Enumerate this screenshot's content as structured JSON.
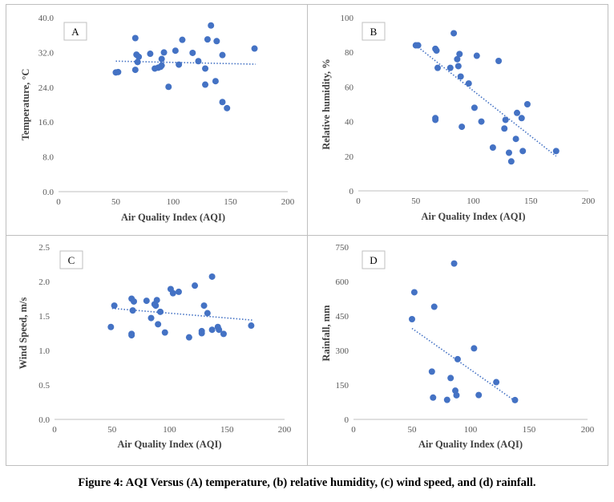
{
  "caption": "Figure 4: AQI Versus (A) temperature, (b) relative humidity, (c) wind speed, and (d) rainfall.",
  "colors": {
    "point": "#4472c4",
    "trend": "#4472c4",
    "axis": "#bfbfbf",
    "tick_text": "#595959",
    "label_text": "#404040"
  },
  "chart_data": [
    {
      "type": "scatter",
      "panel_label": "A",
      "xlabel": "Air Quality Index (AQI)",
      "ylabel": "Temperature, °C",
      "xlim": [
        0,
        200
      ],
      "ylim": [
        0,
        40
      ],
      "xticks": [
        "0",
        "50",
        "100",
        "150",
        "200"
      ],
      "yticks": [
        "0.0",
        "8.0",
        "16.0",
        "24.0",
        "32.0",
        "40.0"
      ],
      "grid": false,
      "trendline": {
        "type": "linear",
        "style": "dotted",
        "x": [
          50,
          172
        ],
        "y": [
          30.0,
          29.3
        ]
      },
      "points": [
        [
          50,
          27.4
        ],
        [
          52,
          27.5
        ],
        [
          67,
          35.3
        ],
        [
          67,
          28.0
        ],
        [
          68,
          31.5
        ],
        [
          69,
          29.8
        ],
        [
          70,
          31.0
        ],
        [
          80,
          31.7
        ],
        [
          84,
          28.3
        ],
        [
          87,
          28.5
        ],
        [
          89,
          28.7
        ],
        [
          90,
          29.0
        ],
        [
          90,
          30.5
        ],
        [
          92,
          32.0
        ],
        [
          96,
          24.1
        ],
        [
          102,
          32.4
        ],
        [
          105,
          29.2
        ],
        [
          108,
          34.9
        ],
        [
          117,
          31.9
        ],
        [
          122,
          30.0
        ],
        [
          128,
          28.3
        ],
        [
          128,
          24.6
        ],
        [
          130,
          35.0
        ],
        [
          133,
          38.2
        ],
        [
          137,
          25.4
        ],
        [
          138,
          34.6
        ],
        [
          143,
          31.4
        ],
        [
          143,
          20.6
        ],
        [
          147,
          19.2
        ],
        [
          171,
          32.9
        ]
      ]
    },
    {
      "type": "scatter",
      "panel_label": "B",
      "xlabel": "Air Quality Index (AQI)",
      "ylabel": "Relative humidity,  %",
      "xlim": [
        0,
        200
      ],
      "ylim": [
        0,
        100
      ],
      "xticks": [
        "0",
        "50",
        "100",
        "150",
        "200"
      ],
      "yticks": [
        "0",
        "20",
        "40",
        "60",
        "80",
        "100"
      ],
      "grid": false,
      "trendline": {
        "type": "linear",
        "style": "dotted",
        "x": [
          50,
          172
        ],
        "y": [
          84,
          20
        ]
      },
      "points": [
        [
          50,
          84
        ],
        [
          52,
          84
        ],
        [
          67,
          82
        ],
        [
          68,
          81
        ],
        [
          67,
          42
        ],
        [
          67,
          41
        ],
        [
          69,
          71
        ],
        [
          80,
          71
        ],
        [
          83,
          91
        ],
        [
          86,
          76
        ],
        [
          87,
          72
        ],
        [
          88,
          79
        ],
        [
          89,
          66
        ],
        [
          90,
          37
        ],
        [
          96,
          62
        ],
        [
          101,
          48
        ],
        [
          103,
          78
        ],
        [
          107,
          40
        ],
        [
          117,
          25
        ],
        [
          122,
          75
        ],
        [
          127,
          36
        ],
        [
          128,
          41
        ],
        [
          131,
          22
        ],
        [
          133,
          17
        ],
        [
          137,
          30
        ],
        [
          138,
          45
        ],
        [
          142,
          42
        ],
        [
          143,
          23
        ],
        [
          147,
          50
        ],
        [
          172,
          23
        ]
      ]
    },
    {
      "type": "scatter",
      "panel_label": "C",
      "xlabel": "Air Quality Index (AQI)",
      "ylabel": "Wind Speed, m/s",
      "xlim": [
        0,
        200
      ],
      "ylim": [
        0,
        2.5
      ],
      "xticks": [
        "0",
        "50",
        "100",
        "150",
        "200"
      ],
      "yticks": [
        "0.0",
        "0.5",
        "1.0",
        "1.5",
        "2.0",
        "2.5"
      ],
      "grid": false,
      "trendline": {
        "type": "linear",
        "style": "dotted",
        "x": [
          50,
          172
        ],
        "y": [
          1.61,
          1.44
        ]
      },
      "points": [
        [
          49,
          1.34
        ],
        [
          52,
          1.65
        ],
        [
          67,
          1.24
        ],
        [
          67,
          1.22
        ],
        [
          67,
          1.75
        ],
        [
          68,
          1.58
        ],
        [
          69,
          1.71
        ],
        [
          80,
          1.72
        ],
        [
          84,
          1.47
        ],
        [
          87,
          1.67
        ],
        [
          88,
          1.65
        ],
        [
          89,
          1.73
        ],
        [
          90,
          1.38
        ],
        [
          92,
          1.56
        ],
        [
          96,
          1.26
        ],
        [
          101,
          1.89
        ],
        [
          103,
          1.83
        ],
        [
          108,
          1.85
        ],
        [
          117,
          1.19
        ],
        [
          122,
          1.94
        ],
        [
          128,
          1.28
        ],
        [
          128,
          1.25
        ],
        [
          130,
          1.65
        ],
        [
          133,
          1.54
        ],
        [
          137,
          2.07
        ],
        [
          137,
          1.3
        ],
        [
          142,
          1.34
        ],
        [
          143,
          1.3
        ],
        [
          147,
          1.24
        ],
        [
          171,
          1.36
        ]
      ]
    },
    {
      "type": "scatter",
      "panel_label": "D",
      "xlabel": "Air Quality Index (AQI)",
      "ylabel": "Rainfall, mm",
      "xlim": [
        0,
        200
      ],
      "ylim": [
        0,
        750
      ],
      "xticks": [
        "0",
        "50",
        "100",
        "150",
        "200"
      ],
      "yticks": [
        "0",
        "150",
        "300",
        "450",
        "600",
        "750"
      ],
      "grid": false,
      "trendline": {
        "type": "linear",
        "style": "dotted",
        "x": [
          50,
          138
        ],
        "y": [
          396,
          80
        ]
      },
      "points": [
        [
          50,
          436
        ],
        [
          52,
          553
        ],
        [
          67,
          208
        ],
        [
          68,
          95
        ],
        [
          69,
          490
        ],
        [
          80,
          85
        ],
        [
          83,
          180
        ],
        [
          86,
          678
        ],
        [
          87,
          125
        ],
        [
          88,
          105
        ],
        [
          89,
          262
        ],
        [
          103,
          309
        ],
        [
          107,
          106
        ],
        [
          122,
          162
        ],
        [
          138,
          84
        ]
      ]
    }
  ]
}
